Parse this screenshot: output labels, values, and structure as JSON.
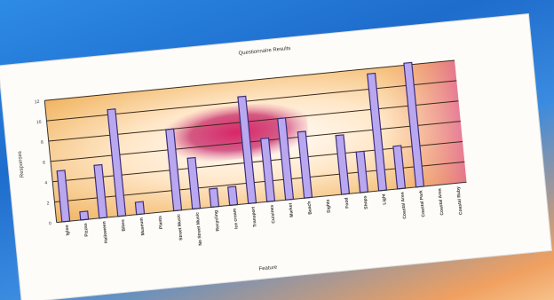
{
  "chart_data": {
    "type": "bar",
    "title": "Questionnaire Results",
    "xlabel": "Feature",
    "ylabel": "Responses",
    "ylim": [
      0,
      12
    ],
    "yticks": [
      0,
      2,
      4,
      6,
      8,
      10,
      12
    ],
    "grid": true,
    "categories": [
      "Igloo",
      "Pizzas",
      "Halloween",
      "Bikes",
      "Museum",
      "Plants",
      "Street Music",
      "No Street Music",
      "Recycling",
      "Ice cream",
      "Transport",
      "Cuisines",
      "Market",
      "Beach",
      "Sights",
      "Food",
      "Shops",
      "Light",
      "Coastal Area",
      "Coastal Park",
      "Coastal Area",
      "Coastal Ruby"
    ],
    "values": [
      5.0,
      0.8,
      5.2,
      10.5,
      1.2,
      0,
      8.0,
      5.0,
      1.8,
      1.8,
      10.5,
      6.2,
      8.0,
      6.5,
      0,
      5.8,
      4.0,
      11.5,
      4.2,
      12.2,
      0,
      0
    ],
    "colors": {
      "bar": "#b9a8f0",
      "bar_edge": "#3b2d7a",
      "plot_outer": "#f2c070",
      "plot_center": "#ffffff",
      "plot_highlight": "#c2185b",
      "sheet": "#fdfcf8"
    }
  }
}
